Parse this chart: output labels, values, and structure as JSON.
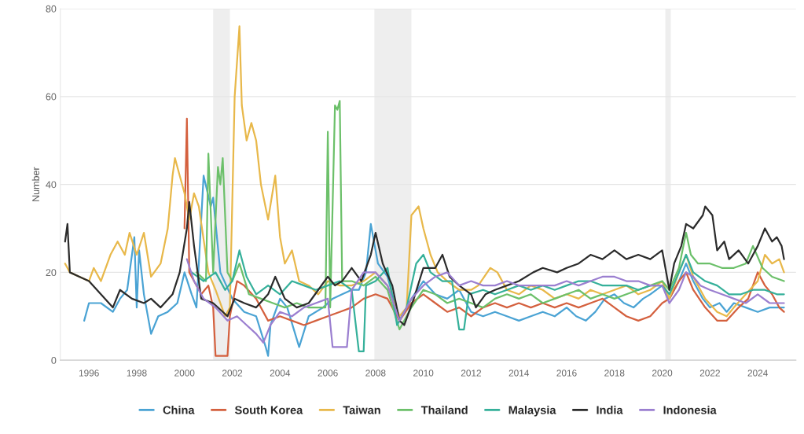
{
  "chart_data": {
    "type": "line",
    "ylabel": "Number",
    "xlim": [
      1994.8,
      2025.6
    ],
    "xticks": [
      1996,
      1998,
      2000,
      2002,
      2004,
      2006,
      2008,
      2010,
      2012,
      2014,
      2016,
      2018,
      2020,
      2022,
      2024
    ],
    "ylim": [
      0,
      80
    ],
    "yticks": [
      0,
      20,
      40,
      60,
      80
    ],
    "grid": "y",
    "legend": "bottom",
    "marker": "none",
    "line_style": "solid",
    "bands": [
      {
        "axis": "x",
        "from": 2001.2,
        "to": 2001.9,
        "color": "#eeeeee"
      },
      {
        "axis": "x",
        "from": 2007.95,
        "to": 2009.5,
        "color": "#eeeeee"
      },
      {
        "axis": "x",
        "from": 2020.13,
        "to": 2020.36,
        "color": "#eeeeee"
      }
    ],
    "series": [
      {
        "name": "China",
        "color": "#4aa3d4",
        "x": [
          1995.8,
          1996.0,
          1996.5,
          1997.0,
          1997.3,
          1997.6,
          1997.9,
          1998.0,
          1998.1,
          1998.3,
          1998.6,
          1998.9,
          1999.3,
          1999.7,
          2000.0,
          2000.3,
          2000.5,
          2000.8,
          2001.1,
          2001.2,
          2001.5,
          2002.0,
          2002.5,
          2003.0,
          2003.4,
          2003.5,
          2003.6,
          2004.0,
          2004.3,
          2004.8,
          2005.2,
          2005.8,
          2006.2,
          2006.6,
          2007.0,
          2007.3,
          2007.6,
          2007.8,
          2008.1,
          2008.5,
          2009.0,
          2009.5,
          2010.0,
          2010.5,
          2011.0,
          2011.5,
          2012.0,
          2012.5,
          2013.0,
          2013.5,
          2014.0,
          2014.5,
          2015.0,
          2015.5,
          2016.0,
          2016.4,
          2016.8,
          2017.2,
          2017.6,
          2018.0,
          2018.4,
          2018.8,
          2019.2,
          2019.5,
          2020.0,
          2020.3,
          2020.7,
          2021.0,
          2021.3,
          2021.7,
          2022.0,
          2022.4,
          2022.7,
          2023.0,
          2023.5,
          2024.0,
          2024.5,
          2025.1
        ],
        "values": [
          9,
          13,
          13,
          11,
          14,
          16,
          28,
          12,
          25,
          15,
          6,
          10,
          11,
          13,
          20,
          15,
          12,
          42,
          35,
          37,
          20,
          14,
          11,
          10,
          3,
          1,
          8,
          14,
          12,
          3,
          10,
          12,
          14,
          15,
          16,
          16,
          20,
          31,
          22,
          19,
          9,
          14,
          18,
          15,
          14,
          16,
          11,
          10,
          11,
          10,
          9,
          10,
          11,
          10,
          12,
          10,
          9,
          11,
          14,
          15,
          13,
          12,
          14,
          15,
          17,
          14,
          18,
          22,
          18,
          14,
          12,
          13,
          11,
          13,
          12,
          11,
          12,
          12
        ]
      },
      {
        "name": "South Korea",
        "color": "#d4603e",
        "x": [
          2000.0,
          2000.1,
          2000.2,
          2000.4,
          2000.7,
          2001.0,
          2001.2,
          2001.3,
          2001.8,
          2001.9,
          2002.2,
          2002.5,
          2003.0,
          2003.5,
          2004.0,
          2004.5,
          2005.0,
          2005.5,
          2006.0,
          2006.5,
          2007.0,
          2007.5,
          2008.0,
          2008.5,
          2009.0,
          2009.5,
          2010.0,
          2010.5,
          2011.0,
          2011.5,
          2012.0,
          2012.5,
          2013.0,
          2013.5,
          2014.0,
          2014.5,
          2015.0,
          2015.5,
          2016.0,
          2016.5,
          2017.0,
          2017.5,
          2018.0,
          2018.5,
          2019.0,
          2019.5,
          2020.0,
          2020.3,
          2020.7,
          2021.0,
          2021.3,
          2021.8,
          2022.3,
          2022.7,
          2023.2,
          2023.6,
          2024.0,
          2024.3,
          2024.6,
          2024.9,
          2025.1
        ],
        "values": [
          30,
          55,
          20,
          18,
          15,
          17,
          12,
          1,
          1,
          10,
          18,
          17,
          14,
          9,
          10,
          9,
          8,
          9,
          10,
          11,
          12,
          14,
          15,
          14,
          9,
          13,
          15,
          13,
          11,
          12,
          10,
          12,
          13,
          12,
          13,
          12,
          13,
          12,
          13,
          12,
          13,
          14,
          12,
          10,
          9,
          10,
          13,
          14,
          18,
          20,
          16,
          12,
          9,
          9,
          12,
          14,
          20,
          17,
          15,
          12,
          11
        ]
      },
      {
        "name": "Taiwan",
        "color": "#e8b84a",
        "x": [
          1995.0,
          1995.2,
          1995.6,
          1996.0,
          1996.2,
          1996.5,
          1996.9,
          1997.2,
          1997.5,
          1997.7,
          1998.0,
          1998.3,
          1998.6,
          1999.0,
          1999.3,
          1999.5,
          1999.6,
          1999.8,
          2000.0,
          2000.2,
          2000.4,
          2000.6,
          2001.0,
          2001.3,
          2001.7,
          2001.9,
          2002.1,
          2002.3,
          2002.4,
          2002.6,
          2002.8,
          2003.0,
          2003.2,
          2003.5,
          2003.8,
          2004.0,
          2004.2,
          2004.5,
          2004.8,
          2005.2,
          2005.6,
          2006.0,
          2006.5,
          2007.0,
          2007.5,
          2008.0,
          2008.5,
          2009.0,
          2009.3,
          2009.5,
          2009.8,
          2010.0,
          2010.3,
          2010.6,
          2011.0,
          2011.5,
          2012.0,
          2012.3,
          2012.8,
          2013.1,
          2013.5,
          2014.0,
          2014.5,
          2015.0,
          2015.5,
          2016.0,
          2016.5,
          2017.0,
          2017.5,
          2018.0,
          2018.5,
          2019.0,
          2019.5,
          2020.0,
          2020.3,
          2020.7,
          2021.0,
          2021.3,
          2021.8,
          2022.3,
          2022.7,
          2023.0,
          2023.5,
          2024.0,
          2024.3,
          2024.6,
          2024.9,
          2025.1
        ],
        "values": [
          22,
          20,
          19,
          18,
          21,
          18,
          24,
          27,
          24,
          29,
          24,
          29,
          19,
          22,
          30,
          42,
          46,
          42,
          38,
          32,
          38,
          35,
          20,
          16,
          10,
          12,
          60,
          76,
          58,
          50,
          54,
          50,
          40,
          32,
          42,
          28,
          22,
          25,
          18,
          17,
          15,
          18,
          17,
          17,
          18,
          20,
          17,
          10,
          12,
          33,
          35,
          30,
          24,
          20,
          18,
          16,
          16,
          17,
          21,
          20,
          16,
          15,
          17,
          16,
          14,
          15,
          14,
          16,
          15,
          16,
          17,
          15,
          16,
          18,
          14,
          20,
          24,
          19,
          14,
          11,
          10,
          12,
          15,
          18,
          24,
          22,
          23,
          20
        ]
      },
      {
        "name": "Thailand",
        "color": "#6cc06a",
        "x": [
          2000.5,
          2000.9,
          2001.0,
          2001.2,
          2001.4,
          2001.5,
          2001.6,
          2001.8,
          2002.0,
          2002.3,
          2002.7,
          2003.2,
          2003.7,
          2004.2,
          2004.7,
          2005.2,
          2005.9,
          2006.0,
          2006.1,
          2006.3,
          2006.4,
          2006.5,
          2006.6,
          2007.0,
          2007.5,
          2008.0,
          2008.5,
          2009.0,
          2009.5,
          2010.0,
          2010.5,
          2011.0,
          2011.5,
          2012.0,
          2012.5,
          2013.0,
          2013.5,
          2014.0,
          2014.5,
          2015.0,
          2015.5,
          2016.0,
          2016.5,
          2017.0,
          2017.5,
          2018.0,
          2018.5,
          2019.0,
          2019.5,
          2020.0,
          2020.3,
          2020.7,
          2021.0,
          2021.2,
          2021.5,
          2022.0,
          2022.5,
          2023.0,
          2023.5,
          2023.8,
          2024.2,
          2024.6,
          2025.1
        ],
        "values": [
          20,
          18,
          47,
          20,
          44,
          40,
          46,
          20,
          18,
          22,
          15,
          14,
          13,
          12,
          13,
          12,
          12,
          52,
          12,
          58,
          57,
          59,
          18,
          18,
          17,
          19,
          16,
          7,
          12,
          16,
          15,
          13,
          14,
          13,
          12,
          14,
          15,
          14,
          15,
          13,
          14,
          15,
          16,
          14,
          15,
          14,
          15,
          16,
          17,
          18,
          16,
          21,
          29,
          24,
          22,
          22,
          21,
          21,
          22,
          26,
          21,
          19,
          18
        ]
      },
      {
        "name": "Malaysia",
        "color": "#35b09a",
        "x": [
          2000.3,
          2000.8,
          2001.3,
          2001.7,
          2002.0,
          2002.3,
          2002.6,
          2003.0,
          2003.5,
          2004.0,
          2004.5,
          2005.0,
          2005.5,
          2006.0,
          2006.5,
          2007.0,
          2007.3,
          2007.5,
          2007.6,
          2008.0,
          2008.5,
          2008.9,
          2009.3,
          2009.7,
          2010.0,
          2010.3,
          2010.8,
          2011.2,
          2011.5,
          2011.7,
          2011.9,
          2012.5,
          2013.0,
          2013.5,
          2014.0,
          2014.5,
          2015.0,
          2015.5,
          2016.0,
          2016.5,
          2017.0,
          2017.5,
          2018.0,
          2018.5,
          2019.0,
          2019.5,
          2020.0,
          2020.3,
          2020.7,
          2021.0,
          2021.3,
          2021.8,
          2022.3,
          2022.8,
          2023.3,
          2023.8,
          2024.3,
          2024.8,
          2025.1
        ],
        "values": [
          20,
          18,
          20,
          16,
          18,
          25,
          19,
          15,
          17,
          15,
          18,
          17,
          16,
          17,
          18,
          16,
          2,
          2,
          17,
          18,
          21,
          8,
          12,
          22,
          24,
          20,
          18,
          18,
          7,
          7,
          15,
          16,
          15,
          16,
          17,
          16,
          17,
          16,
          17,
          18,
          18,
          17,
          17,
          17,
          16,
          17,
          17,
          15,
          20,
          24,
          20,
          18,
          17,
          15,
          15,
          16,
          16,
          15,
          15
        ]
      },
      {
        "name": "India",
        "color": "#2b2b2b",
        "x": [
          1995.0,
          1995.1,
          1995.2,
          1995.6,
          1996.0,
          1996.5,
          1997.0,
          1997.3,
          1997.8,
          1998.3,
          1998.6,
          1999.0,
          1999.5,
          1999.8,
          2000.1,
          2000.2,
          2000.4,
          2000.7,
          2001.2,
          2001.8,
          2002.1,
          2002.5,
          2003.0,
          2003.5,
          2003.8,
          2004.2,
          2004.7,
          2005.2,
          2005.6,
          2006.0,
          2006.3,
          2006.6,
          2007.0,
          2007.4,
          2007.8,
          2008.0,
          2008.3,
          2008.7,
          2009.0,
          2009.2,
          2009.6,
          2010.0,
          2010.5,
          2010.8,
          2011.1,
          2011.5,
          2012.0,
          2012.2,
          2012.6,
          2013.0,
          2013.5,
          2014.0,
          2014.6,
          2015.0,
          2015.6,
          2016.0,
          2016.5,
          2017.0,
          2017.5,
          2018.0,
          2018.5,
          2019.0,
          2019.5,
          2020.0,
          2020.3,
          2020.5,
          2020.8,
          2021.0,
          2021.3,
          2021.7,
          2021.8,
          2022.1,
          2022.3,
          2022.6,
          2022.8,
          2023.2,
          2023.6,
          2024.0,
          2024.3,
          2024.6,
          2024.8,
          2025.0,
          2025.1
        ],
        "values": [
          27,
          31,
          20,
          19,
          18,
          15,
          12,
          16,
          14,
          13,
          14,
          12,
          15,
          20,
          30,
          36,
          26,
          14,
          13,
          10,
          14,
          13,
          12,
          15,
          19,
          14,
          12,
          13,
          16,
          19,
          17,
          18,
          21,
          18,
          24,
          29,
          22,
          17,
          9,
          8,
          14,
          21,
          21,
          24,
          19,
          17,
          15,
          12,
          15,
          16,
          17,
          18,
          20,
          21,
          20,
          21,
          22,
          24,
          23,
          25,
          23,
          24,
          23,
          25,
          16,
          22,
          26,
          31,
          30,
          33,
          35,
          33,
          25,
          27,
          23,
          25,
          22,
          26,
          30,
          27,
          28,
          26,
          23
        ]
      },
      {
        "name": "Indonesia",
        "color": "#9b7fd0",
        "x": [
          2000.1,
          2000.4,
          2000.8,
          2001.3,
          2001.8,
          2002.2,
          2002.6,
          2003.0,
          2003.3,
          2003.6,
          2004.0,
          2004.5,
          2005.0,
          2005.5,
          2006.0,
          2006.2,
          2006.8,
          2007.0,
          2007.5,
          2008.0,
          2008.5,
          2009.0,
          2009.5,
          2010.0,
          2010.5,
          2011.0,
          2011.5,
          2012.0,
          2012.5,
          2013.0,
          2013.5,
          2014.0,
          2014.5,
          2015.0,
          2015.5,
          2016.0,
          2016.5,
          2017.0,
          2017.5,
          2018.0,
          2018.5,
          2019.0,
          2019.5,
          2020.0,
          2020.3,
          2020.7,
          2021.0,
          2021.3,
          2021.6,
          2022.0,
          2022.5,
          2023.0,
          2023.5,
          2024.0,
          2024.5,
          2025.1
        ],
        "values": [
          23,
          18,
          14,
          12,
          9,
          10,
          8,
          6,
          4,
          8,
          11,
          10,
          12,
          13,
          14,
          3,
          3,
          16,
          20,
          20,
          17,
          9,
          14,
          17,
          19,
          20,
          17,
          18,
          17,
          17,
          18,
          17,
          17,
          17,
          17,
          18,
          17,
          18,
          19,
          19,
          18,
          18,
          17,
          17,
          13,
          16,
          20,
          19,
          17,
          16,
          15,
          14,
          13,
          15,
          13,
          13
        ]
      }
    ]
  }
}
